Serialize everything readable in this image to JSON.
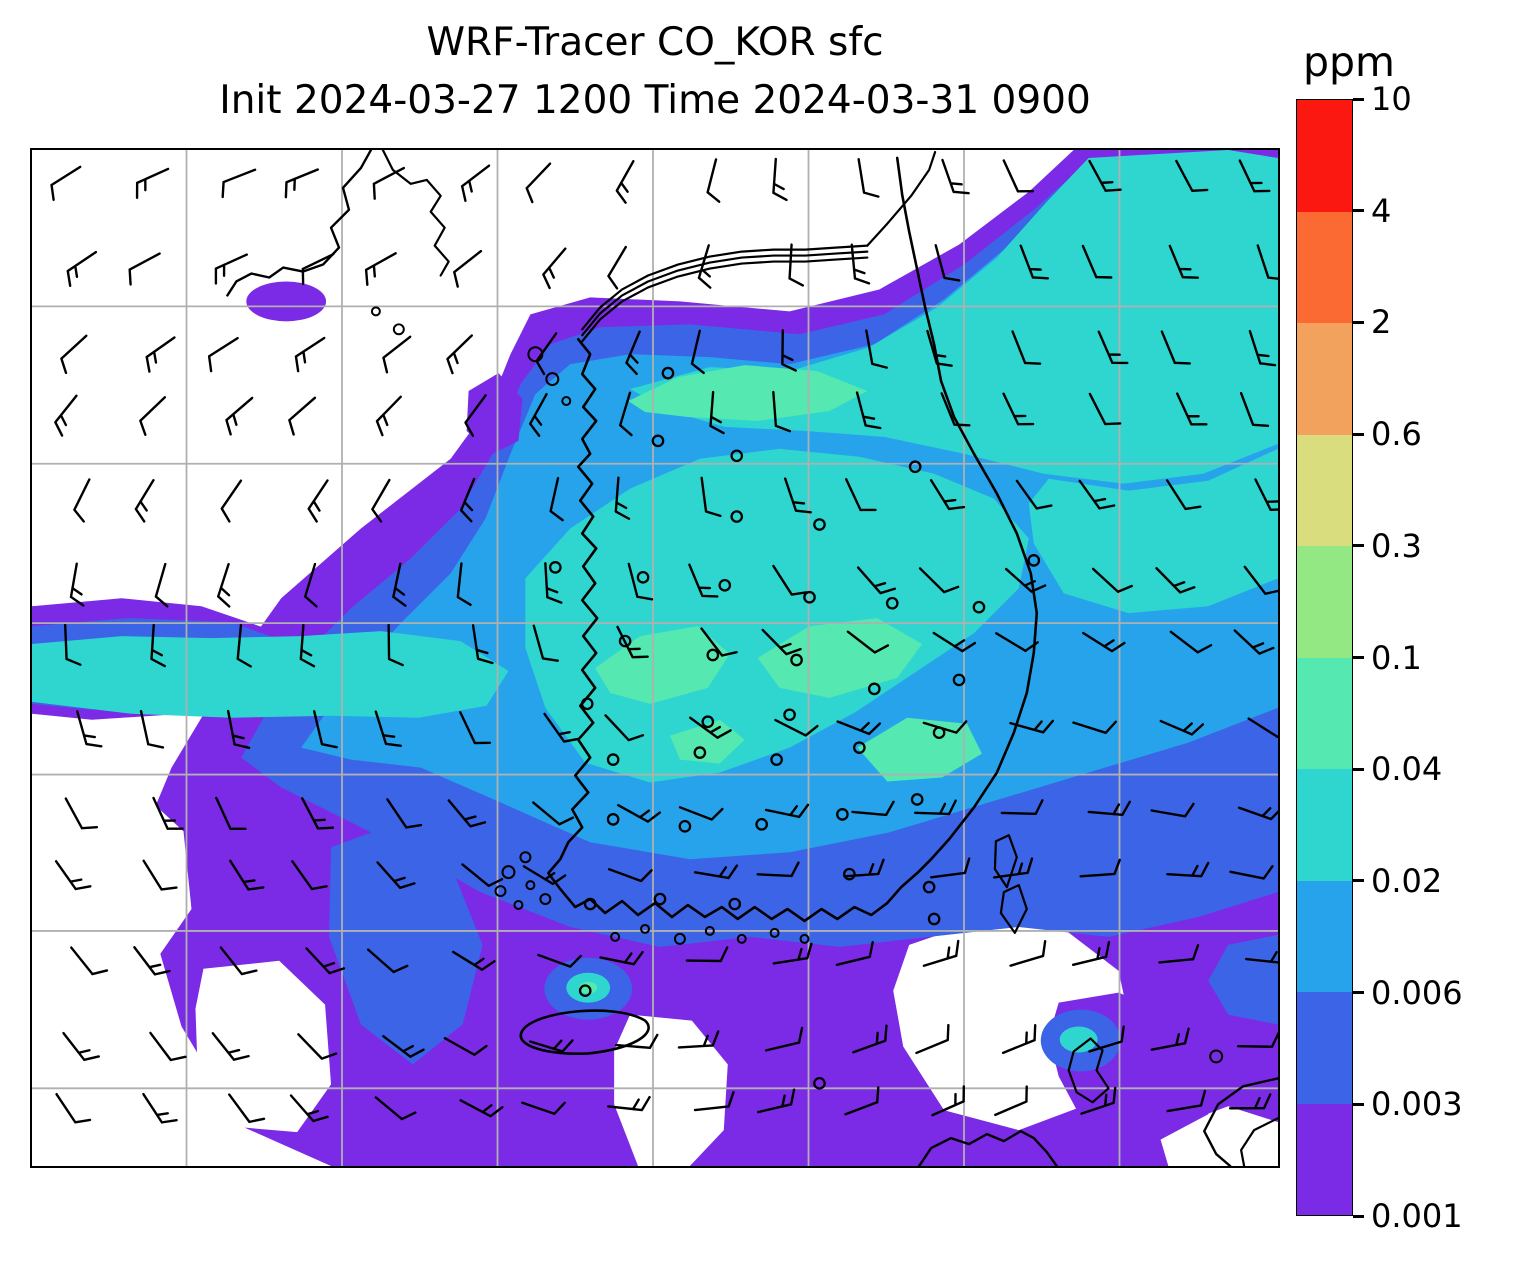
{
  "chart_data": {
    "type": "heatmap",
    "title": "WRF-Tracer CO_KOR sfc",
    "subtitle": "Init 2024-03-27 1200 Time 2024-03-31 0900",
    "units": "ppm",
    "colorbar": {
      "label": "ppm",
      "tick_labels_top_to_bottom": [
        "10",
        "4",
        "2",
        "0.6",
        "0.3",
        "0.1",
        "0.04",
        "0.02",
        "0.006",
        "0.003",
        "0.001"
      ],
      "levels_ppm_bottom_to_top": [
        0.001,
        0.003,
        0.006,
        0.02,
        0.04,
        0.1,
        0.3,
        0.6,
        2,
        4,
        10
      ],
      "segment_colors_bottom_to_top": [
        "#7b2be5",
        "#3c64e6",
        "#27a3ec",
        "#2fd6cf",
        "#55e8b0",
        "#93e884",
        "#d9dd7e",
        "#f2a25c",
        "#fb6a33",
        "#fa1810"
      ]
    },
    "field_summary": "Surface CO tracer concentrations from ~0.001 ppm (purple) up to ~0.04-0.1 ppm (aquamarine) over central South Korea and a plume extending northeast; surrounding seas mostly 0.001-0.006 ppm; no values above 0.1 ppm shown on map",
    "map_overlays": [
      "wind barbs",
      "coastlines (Korea, NE China, Jeju, Tsushima, W Japan)",
      "surface station circle markers",
      "gray latitude-longitude grid"
    ],
    "grid_color": "#b0b0b0",
    "coast_color": "#000000",
    "barb_color": "#000000",
    "background_color": "#ffffff"
  }
}
